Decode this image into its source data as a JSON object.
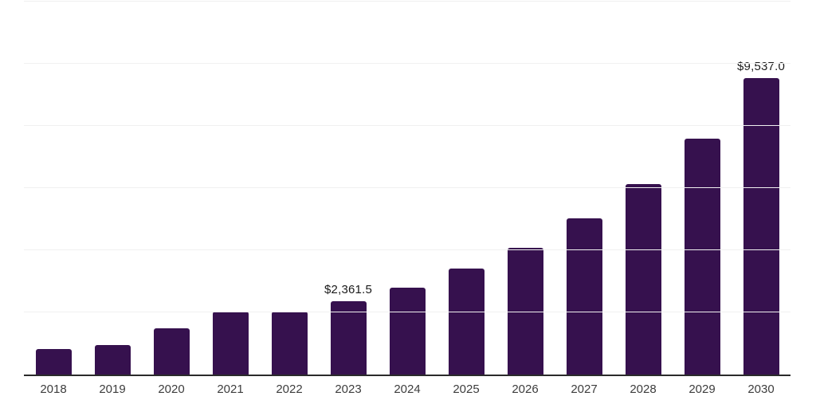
{
  "chart_data": {
    "type": "bar",
    "title": "",
    "xlabel": "",
    "ylabel": "",
    "categories": [
      "2018",
      "2019",
      "2020",
      "2021",
      "2022",
      "2023",
      "2024",
      "2025",
      "2026",
      "2027",
      "2028",
      "2029",
      "2030"
    ],
    "values": [
      810,
      960,
      1500,
      2020,
      2030,
      2361.5,
      2800,
      3400,
      4090,
      5030,
      6120,
      7600,
      9537
    ],
    "ylim": [
      0,
      12000
    ],
    "gridline_step": 2000,
    "grid": true,
    "legend": false,
    "data_labels": [
      {
        "index": 5,
        "text": "$2,361.5"
      },
      {
        "index": 12,
        "text": "$9,537.0"
      }
    ],
    "colors": {
      "bar": "#36114E",
      "axis_line": "#2b2b2b",
      "gridline": "#f0f0f0",
      "tick_label": "#3d3d3d",
      "data_label": "#1a1a1a",
      "background": "#ffffff"
    }
  }
}
